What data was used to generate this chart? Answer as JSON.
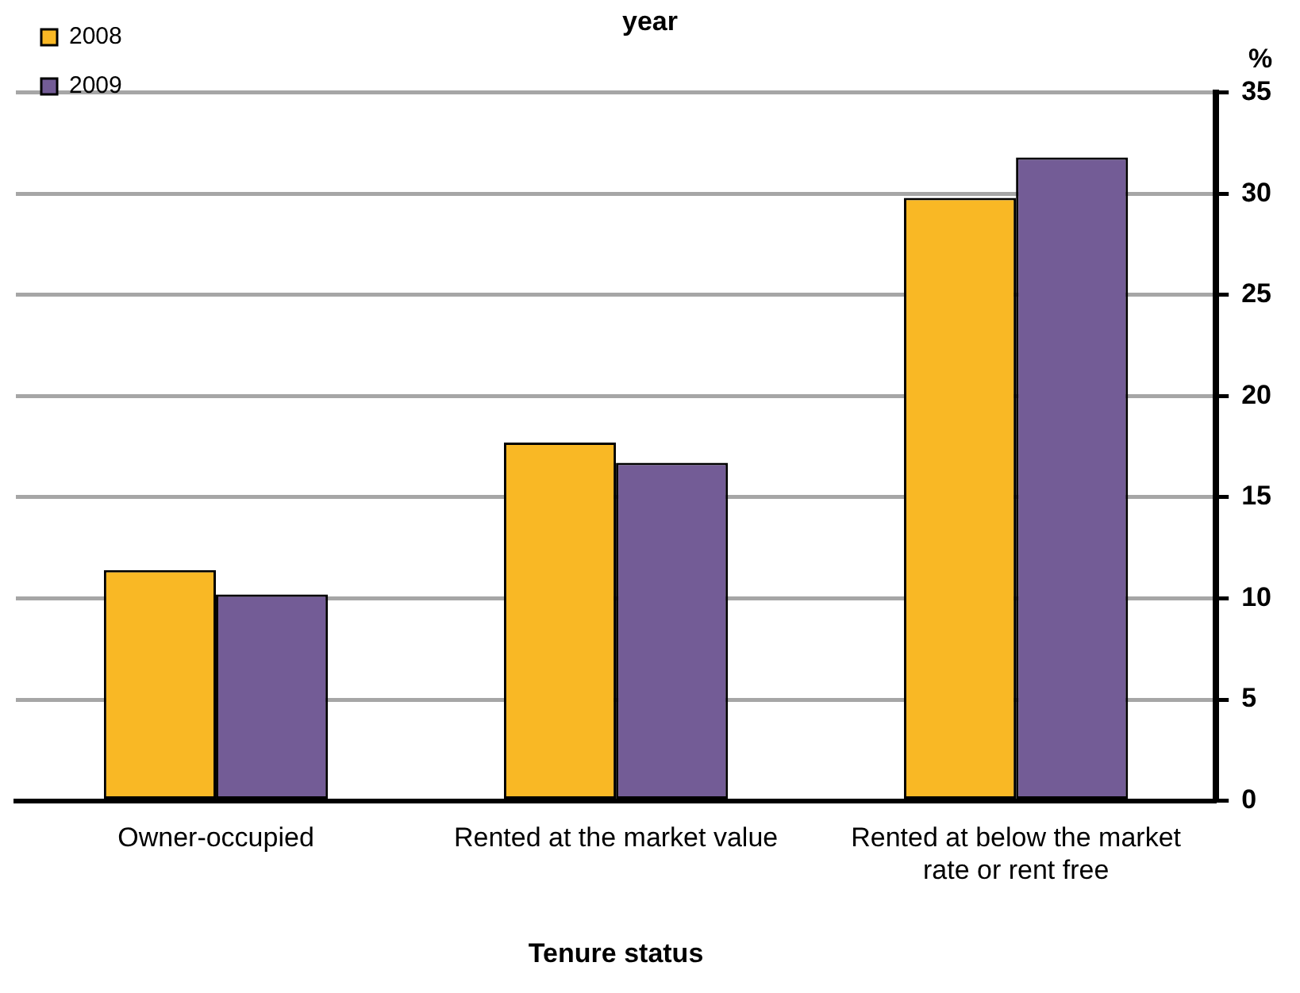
{
  "chart_data": {
    "type": "bar",
    "title": "year",
    "xlabel": "Tenure status",
    "ylabel": "%",
    "categories": [
      "Owner-occupied",
      "Rented at the market value",
      "Rented at below the market rate or rent free"
    ],
    "series": [
      {
        "name": "2008",
        "color": "#f9b825",
        "values": [
          11.4,
          17.7,
          29.8
        ]
      },
      {
        "name": "2009",
        "color": "#735c96",
        "values": [
          10.2,
          16.7,
          31.8
        ]
      }
    ],
    "ylim": [
      0,
      35
    ],
    "yticks": [
      0,
      5,
      10,
      15,
      20,
      25,
      30,
      35
    ],
    "grid": "y",
    "legend": "top left"
  }
}
